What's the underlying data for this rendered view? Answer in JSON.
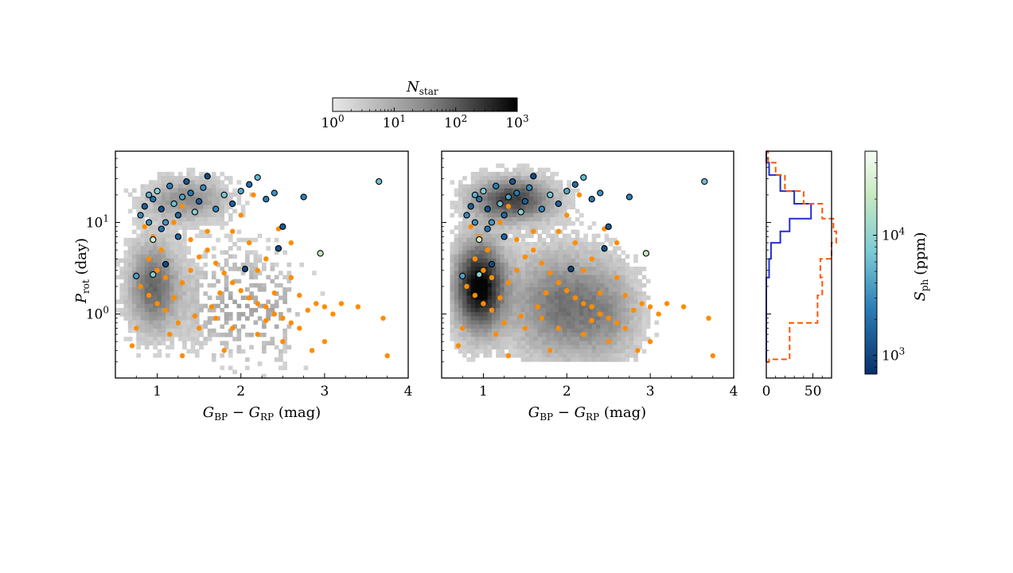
{
  "colorbar_top": {
    "label": "N",
    "label_sub": "star",
    "tick_labels": [
      {
        "base": "10",
        "exp": "0"
      },
      {
        "base": "10",
        "exp": "1"
      },
      {
        "base": "10",
        "exp": "2"
      },
      {
        "base": "10",
        "exp": "3"
      }
    ],
    "scale": "log",
    "range": [
      1,
      1000
    ],
    "colors": [
      "#e8e8e8",
      "#000000"
    ]
  },
  "colorbar_right": {
    "label": "S",
    "label_sub": "ph",
    "label_unit": "(ppm)",
    "tick_labels": [
      {
        "base": "10",
        "exp": "3"
      },
      {
        "base": "10",
        "exp": "4"
      }
    ],
    "scale": "log",
    "range": [
      700,
      50000
    ],
    "colors": [
      "#08306b",
      "#2c7fb8",
      "#7ccbd6",
      "#c7e9c0",
      "#f7fcf5"
    ]
  },
  "chart_data": [
    {
      "type": "scatter",
      "panel": "left",
      "xlabel": {
        "main": "G",
        "sub1": "BP",
        "mid": " − G",
        "sub2": "RP",
        "unit": " (mag)"
      },
      "ylabel": {
        "main": "P",
        "sub": "rot",
        "unit": " (day)"
      },
      "xlim": [
        0.5,
        4.0
      ],
      "ylim": [
        0.2,
        60
      ],
      "yscale": "log",
      "x_tick_labels": [
        "1",
        "2",
        "3",
        "4"
      ],
      "y_tick_labels": [
        {
          "base": "10",
          "exp": "0"
        },
        {
          "base": "10",
          "exp": "1"
        }
      ],
      "background": "2D density histogram of stars (grey)",
      "series": [
        {
          "color": "#ff8c00",
          "points": [
            [
              0.85,
              9
            ],
            [
              0.95,
              7
            ],
            [
              1.05,
              5
            ],
            [
              0.9,
              4
            ],
            [
              1.0,
              3
            ],
            [
              1.1,
              2.5
            ],
            [
              0.8,
              2
            ],
            [
              0.9,
              1.6
            ],
            [
              1.0,
              1.3
            ],
            [
              1.1,
              1.1
            ],
            [
              1.2,
              1.5
            ],
            [
              1.3,
              2.2
            ],
            [
              1.4,
              3
            ],
            [
              1.5,
              4.2
            ],
            [
              1.6,
              5
            ],
            [
              1.7,
              3.6
            ],
            [
              1.8,
              2.8
            ],
            [
              1.9,
              2.2
            ],
            [
              2.0,
              1.8
            ],
            [
              2.1,
              1.5
            ],
            [
              2.2,
              1.3
            ],
            [
              2.3,
              1.2
            ],
            [
              2.4,
              1.0
            ],
            [
              2.5,
              0.9
            ],
            [
              2.6,
              0.8
            ],
            [
              2.7,
              0.7
            ],
            [
              2.8,
              1.1
            ],
            [
              2.9,
              1.3
            ],
            [
              3.0,
              1.2
            ],
            [
              3.1,
              1.0
            ],
            [
              2.2,
              0.6
            ],
            [
              2.5,
              0.5
            ],
            [
              1.8,
              0.4
            ],
            [
              1.3,
              0.35
            ],
            [
              0.7,
              0.45
            ],
            [
              1.5,
              0.7
            ],
            [
              1.7,
              0.9
            ],
            [
              1.9,
              0.7
            ],
            [
              2.3,
              0.85
            ],
            [
              2.6,
              2.5
            ],
            [
              2.3,
              4
            ],
            [
              2.1,
              6
            ],
            [
              1.9,
              8
            ],
            [
              2.2,
              3
            ],
            [
              2.0,
              12
            ],
            [
              2.15,
              20
            ],
            [
              1.75,
              1.7
            ],
            [
              1.65,
              1.2
            ],
            [
              1.45,
              0.95
            ],
            [
              1.25,
              0.8
            ],
            [
              1.15,
              0.6
            ],
            [
              2.4,
              1.7
            ],
            [
              2.7,
              1.6
            ],
            [
              3.2,
              1.3
            ],
            [
              3.4,
              1.2
            ],
            [
              3.7,
              0.9
            ],
            [
              3.75,
              0.35
            ],
            [
              3.0,
              0.5
            ],
            [
              2.85,
              0.4
            ],
            [
              1.6,
              8
            ],
            [
              1.4,
              6.5
            ],
            [
              1.2,
              10
            ],
            [
              1.3,
              15
            ],
            [
              0.75,
              0.7
            ],
            [
              2.45,
              8.5
            ],
            [
              2.6,
              6
            ]
          ]
        },
        {
          "color_scale": "S_ph",
          "edge": "#000000",
          "points": [
            [
              0.8,
              12,
              3000
            ],
            [
              0.85,
              15,
              1500
            ],
            [
              0.9,
              20,
              5000
            ],
            [
              0.95,
              18,
              2000
            ],
            [
              1.0,
              22,
              8000
            ],
            [
              1.05,
              14,
              1200
            ],
            [
              1.1,
              10,
              3500
            ],
            [
              1.15,
              25,
              2500
            ],
            [
              1.2,
              16,
              6000
            ],
            [
              1.25,
              12,
              1800
            ],
            [
              1.3,
              19,
              4000
            ],
            [
              1.35,
              28,
              1300
            ],
            [
              1.4,
              21,
              2200
            ],
            [
              1.45,
              13,
              9000
            ],
            [
              1.5,
              17,
              1500
            ],
            [
              1.55,
              24,
              3000
            ],
            [
              1.6,
              32,
              1100
            ],
            [
              1.7,
              14,
              2800
            ],
            [
              1.8,
              20,
              7000
            ],
            [
              1.9,
              16,
              1600
            ],
            [
              2.0,
              22,
              4500
            ],
            [
              2.1,
              26,
              1900
            ],
            [
              2.2,
              31,
              5500
            ],
            [
              2.3,
              18,
              2400
            ],
            [
              2.4,
              21,
              3200
            ],
            [
              2.75,
              19,
              2600
            ],
            [
              2.5,
              9,
              1400
            ],
            [
              2.45,
              5.2,
              1200
            ],
            [
              2.95,
              4.6,
              20000
            ],
            [
              2.05,
              3.1,
              1000
            ],
            [
              1.1,
              3.5,
              1100
            ],
            [
              0.95,
              2.7,
              9000
            ],
            [
              0.75,
              2.6,
              4000
            ],
            [
              3.65,
              28,
              6000
            ],
            [
              0.95,
              6.5,
              25000
            ],
            [
              1.05,
              8.5,
              2000
            ],
            [
              1.25,
              7,
              1700
            ],
            [
              0.9,
              10,
              3300
            ]
          ]
        }
      ]
    },
    {
      "type": "scatter",
      "panel": "middle",
      "xlabel": {
        "main": "G",
        "sub1": "BP",
        "mid": " − G",
        "sub2": "RP",
        "unit": " (mag)"
      },
      "xlim": [
        0.5,
        4.0
      ],
      "ylim": [
        0.2,
        60
      ],
      "yscale": "log",
      "x_tick_labels": [
        "1",
        "2",
        "3",
        "4"
      ],
      "background": "2D density histogram of stars (grey)"
    },
    {
      "type": "histogram",
      "panel": "right",
      "orientation": "horizontal",
      "xlim": [
        0,
        70
      ],
      "x_tick_labels": [
        "0",
        "50"
      ],
      "ylim": [
        0.2,
        60
      ],
      "yscale": "log",
      "series": [
        {
          "color": "#1f2fd0",
          "linestyle": "solid",
          "bins": [
            [
              0.3,
              0.5,
              0
            ],
            [
              0.5,
              1,
              0
            ],
            [
              1,
              2.5,
              0
            ],
            [
              2.5,
              4,
              3
            ],
            [
              4,
              6,
              5
            ],
            [
              6,
              8,
              15
            ],
            [
              8,
              11,
              25
            ],
            [
              11,
              16,
              48
            ],
            [
              16,
              22,
              30
            ],
            [
              22,
              33,
              15
            ],
            [
              33,
              45,
              3
            ],
            [
              45,
              60,
              0
            ]
          ]
        },
        {
          "color": "#ff5500",
          "linestyle": "dashed",
          "bins": [
            [
              0.3,
              0.32,
              3
            ],
            [
              0.32,
              0.8,
              25
            ],
            [
              0.8,
              1.6,
              55
            ],
            [
              1.6,
              2.5,
              60
            ],
            [
              2.5,
              4,
              58
            ],
            [
              4,
              6,
              70
            ],
            [
              6,
              8,
              75
            ],
            [
              8,
              11,
              72
            ],
            [
              11,
              16,
              60
            ],
            [
              16,
              22,
              40
            ],
            [
              22,
              33,
              20
            ],
            [
              33,
              45,
              10
            ],
            [
              45,
              60,
              2
            ]
          ]
        }
      ]
    }
  ]
}
